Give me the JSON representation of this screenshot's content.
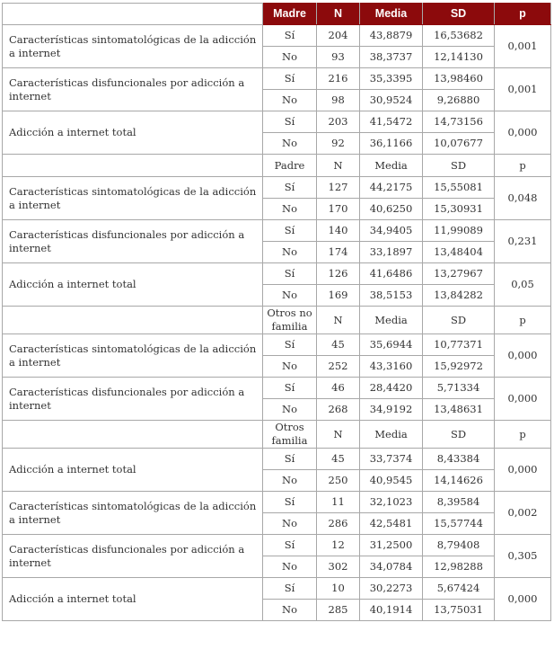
{
  "colors": {
    "header_bg": "#8c0a0c",
    "header_text": "#ffffff"
  },
  "sections": [
    {
      "header": {
        "group": "Madre",
        "n": "N",
        "media": "Media",
        "sd": "SD",
        "p": "p"
      },
      "primary": true,
      "groups": [
        {
          "label": "Características sintomatológicas de la adicción a internet",
          "p": "0,001",
          "rows": [
            {
              "resp": "Sí",
              "n": "204",
              "media": "43,8879",
              "sd": "16,53682"
            },
            {
              "resp": "No",
              "n": "93",
              "media": "38,3737",
              "sd": "12,14130"
            }
          ]
        },
        {
          "label": "Características disfuncionales por adicción a internet",
          "p": "0,001",
          "rows": [
            {
              "resp": "Sí",
              "n": "216",
              "media": "35,3395",
              "sd": "13,98460"
            },
            {
              "resp": "No",
              "n": "98",
              "media": "30,9524",
              "sd": "9,26880"
            }
          ]
        },
        {
          "label": "Adicción a internet total",
          "p": "0,000",
          "rows": [
            {
              "resp": "Sí",
              "n": "203",
              "media": "41,5472",
              "sd": "14,73156"
            },
            {
              "resp": "No",
              "n": "92",
              "media": "36,1166",
              "sd": "10,07677"
            }
          ]
        }
      ]
    },
    {
      "header": {
        "group": "Padre",
        "n": "N",
        "media": "Media",
        "sd": "SD",
        "p": "p"
      },
      "groups": [
        {
          "label": "Características sintomatológicas de la adicción a internet",
          "p": "0,048",
          "rows": [
            {
              "resp": "Sí",
              "n": "127",
              "media": "44,2175",
              "sd": "15,55081"
            },
            {
              "resp": "No",
              "n": "170",
              "media": "40,6250",
              "sd": "15,30931"
            }
          ]
        },
        {
          "label": "Características disfuncionales por adicción a internet",
          "p": "0,231",
          "rows": [
            {
              "resp": "Sí",
              "n": "140",
              "media": "34,9405",
              "sd": "11,99089"
            },
            {
              "resp": "No",
              "n": "174",
              "media": "33,1897",
              "sd": "13,48404"
            }
          ]
        },
        {
          "label": "Adicción a internet total",
          "p": "0,05",
          "rows": [
            {
              "resp": "Sí",
              "n": "126",
              "media": "41,6486",
              "sd": "13,27967"
            },
            {
              "resp": "No",
              "n": "169",
              "media": "38,5153",
              "sd": "13,84282"
            }
          ]
        }
      ]
    },
    {
      "header": {
        "group": "Otros no familia",
        "n": "N",
        "media": "Media",
        "sd": "SD",
        "p": "p"
      },
      "groups": [
        {
          "label": "Características sintomatológicas de la adicción a internet",
          "p": "0,000",
          "rows": [
            {
              "resp": "Sí",
              "n": "45",
              "media": "35,6944",
              "sd": "10,77371"
            },
            {
              "resp": "No",
              "n": "252",
              "media": "43,3160",
              "sd": "15,92972"
            }
          ]
        },
        {
          "label": "Características disfuncionales por adicción a internet",
          "p": "0,000",
          "rows": [
            {
              "resp": "Sí",
              "n": "46",
              "media": "28,4420",
              "sd": "5,71334"
            },
            {
              "resp": "No",
              "n": "268",
              "media": "34,9192",
              "sd": "13,48631"
            }
          ]
        }
      ]
    },
    {
      "header": {
        "group": "Otros familia",
        "n": "N",
        "media": "Media",
        "sd": "SD",
        "p": "p"
      },
      "groups": [
        {
          "label": "Adicción a internet total",
          "p": "0,000",
          "rows": [
            {
              "resp": "Sí",
              "n": "45",
              "media": "33,7374",
              "sd": "8,43384"
            },
            {
              "resp": "No",
              "n": "250",
              "media": "40,9545",
              "sd": "14,14626"
            }
          ]
        },
        {
          "label": "Características sintomatológicas de la adicción a internet",
          "p": "0,002",
          "rows": [
            {
              "resp": "Sí",
              "n": "11",
              "media": "32,1023",
              "sd": "8,39584"
            },
            {
              "resp": "No",
              "n": "286",
              "media": "42,5481",
              "sd": "15,57744"
            }
          ]
        },
        {
          "label": "Características disfuncionales por adicción a internet",
          "p": "0,305",
          "rows": [
            {
              "resp": "Sí",
              "n": "12",
              "media": "31,2500",
              "sd": "8,79408"
            },
            {
              "resp": "No",
              "n": "302",
              "media": "34,0784",
              "sd": "12,98288"
            }
          ]
        },
        {
          "label": "Adicción a internet total",
          "p": "0,000",
          "rows": [
            {
              "resp": "Sí",
              "n": "10",
              "media": "30,2273",
              "sd": "5,67424"
            },
            {
              "resp": "No",
              "n": "285",
              "media": "40,1914",
              "sd": "13,75031"
            }
          ]
        }
      ]
    }
  ]
}
